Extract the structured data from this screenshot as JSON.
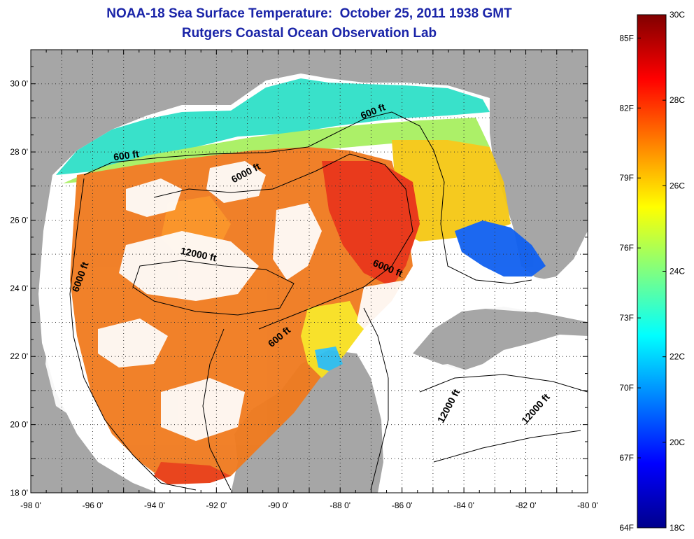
{
  "title": "NOAA-18 Sea Surface Temperature:  October 25, 2011 1938 GMT",
  "subtitle": "Rutgers Coastal Ocean Observation Lab",
  "map": {
    "lon_range": [
      -98,
      -80
    ],
    "lat_range": [
      18,
      31
    ],
    "lon_ticks": [
      {
        "value": -98,
        "label": "-98 0'"
      },
      {
        "value": -96,
        "label": "-96 0'"
      },
      {
        "value": -94,
        "label": "-94 0'"
      },
      {
        "value": -92,
        "label": "-92 0'"
      },
      {
        "value": -90,
        "label": "-90 0'"
      },
      {
        "value": -88,
        "label": "-88 0'"
      },
      {
        "value": -86,
        "label": "-86 0'"
      },
      {
        "value": -84,
        "label": "-84 0'"
      },
      {
        "value": -82,
        "label": "-82 0'"
      },
      {
        "value": -80,
        "label": "-80 0'"
      }
    ],
    "lat_ticks": [
      {
        "value": 18,
        "label": "18 0'"
      },
      {
        "value": 20,
        "label": "20 0'"
      },
      {
        "value": 22,
        "label": "22 0'"
      },
      {
        "value": 24,
        "label": "24 0'"
      },
      {
        "value": 26,
        "label": "26 0'"
      },
      {
        "value": 28,
        "label": "28 0'"
      },
      {
        "value": 30,
        "label": "30 0'"
      }
    ],
    "contour_labels": [
      {
        "text": "600 ft",
        "lon": -86.9,
        "lat": 29.1,
        "angle": -22
      },
      {
        "text": "600 ft",
        "lon": -94.9,
        "lat": 27.8,
        "angle": -8
      },
      {
        "text": "6000 ft",
        "lon": -91.0,
        "lat": 27.3,
        "angle": -28
      },
      {
        "text": "12000 ft",
        "lon": -92.6,
        "lat": 24.9,
        "angle": 12
      },
      {
        "text": "6000 ft",
        "lon": -96.3,
        "lat": 24.3,
        "angle": -70
      },
      {
        "text": "6000 ft",
        "lon": -86.5,
        "lat": 24.5,
        "angle": 22
      },
      {
        "text": "600 ft",
        "lon": -89.9,
        "lat": 22.5,
        "angle": -40
      },
      {
        "text": "12000 ft",
        "lon": -84.4,
        "lat": 20.5,
        "angle": -62
      },
      {
        "text": "12000 ft",
        "lon": -81.6,
        "lat": 20.4,
        "angle": -48
      }
    ],
    "colors": {
      "land": "#a6a6a6",
      "cloud": "#ffffff",
      "frame": "#000000"
    }
  },
  "colorbar": {
    "colors": [
      "#00008c",
      "#0000ff",
      "#0080ff",
      "#00ffff",
      "#80ff80",
      "#ffff00",
      "#ff8000",
      "#ff0000",
      "#800000"
    ],
    "fahrenheit": [
      "64F",
      "67F",
      "70F",
      "73F",
      "76F",
      "79F",
      "82F",
      "85F"
    ],
    "celsius": [
      "18C",
      "20C",
      "22C",
      "24C",
      "26C",
      "28C",
      "30C"
    ]
  }
}
